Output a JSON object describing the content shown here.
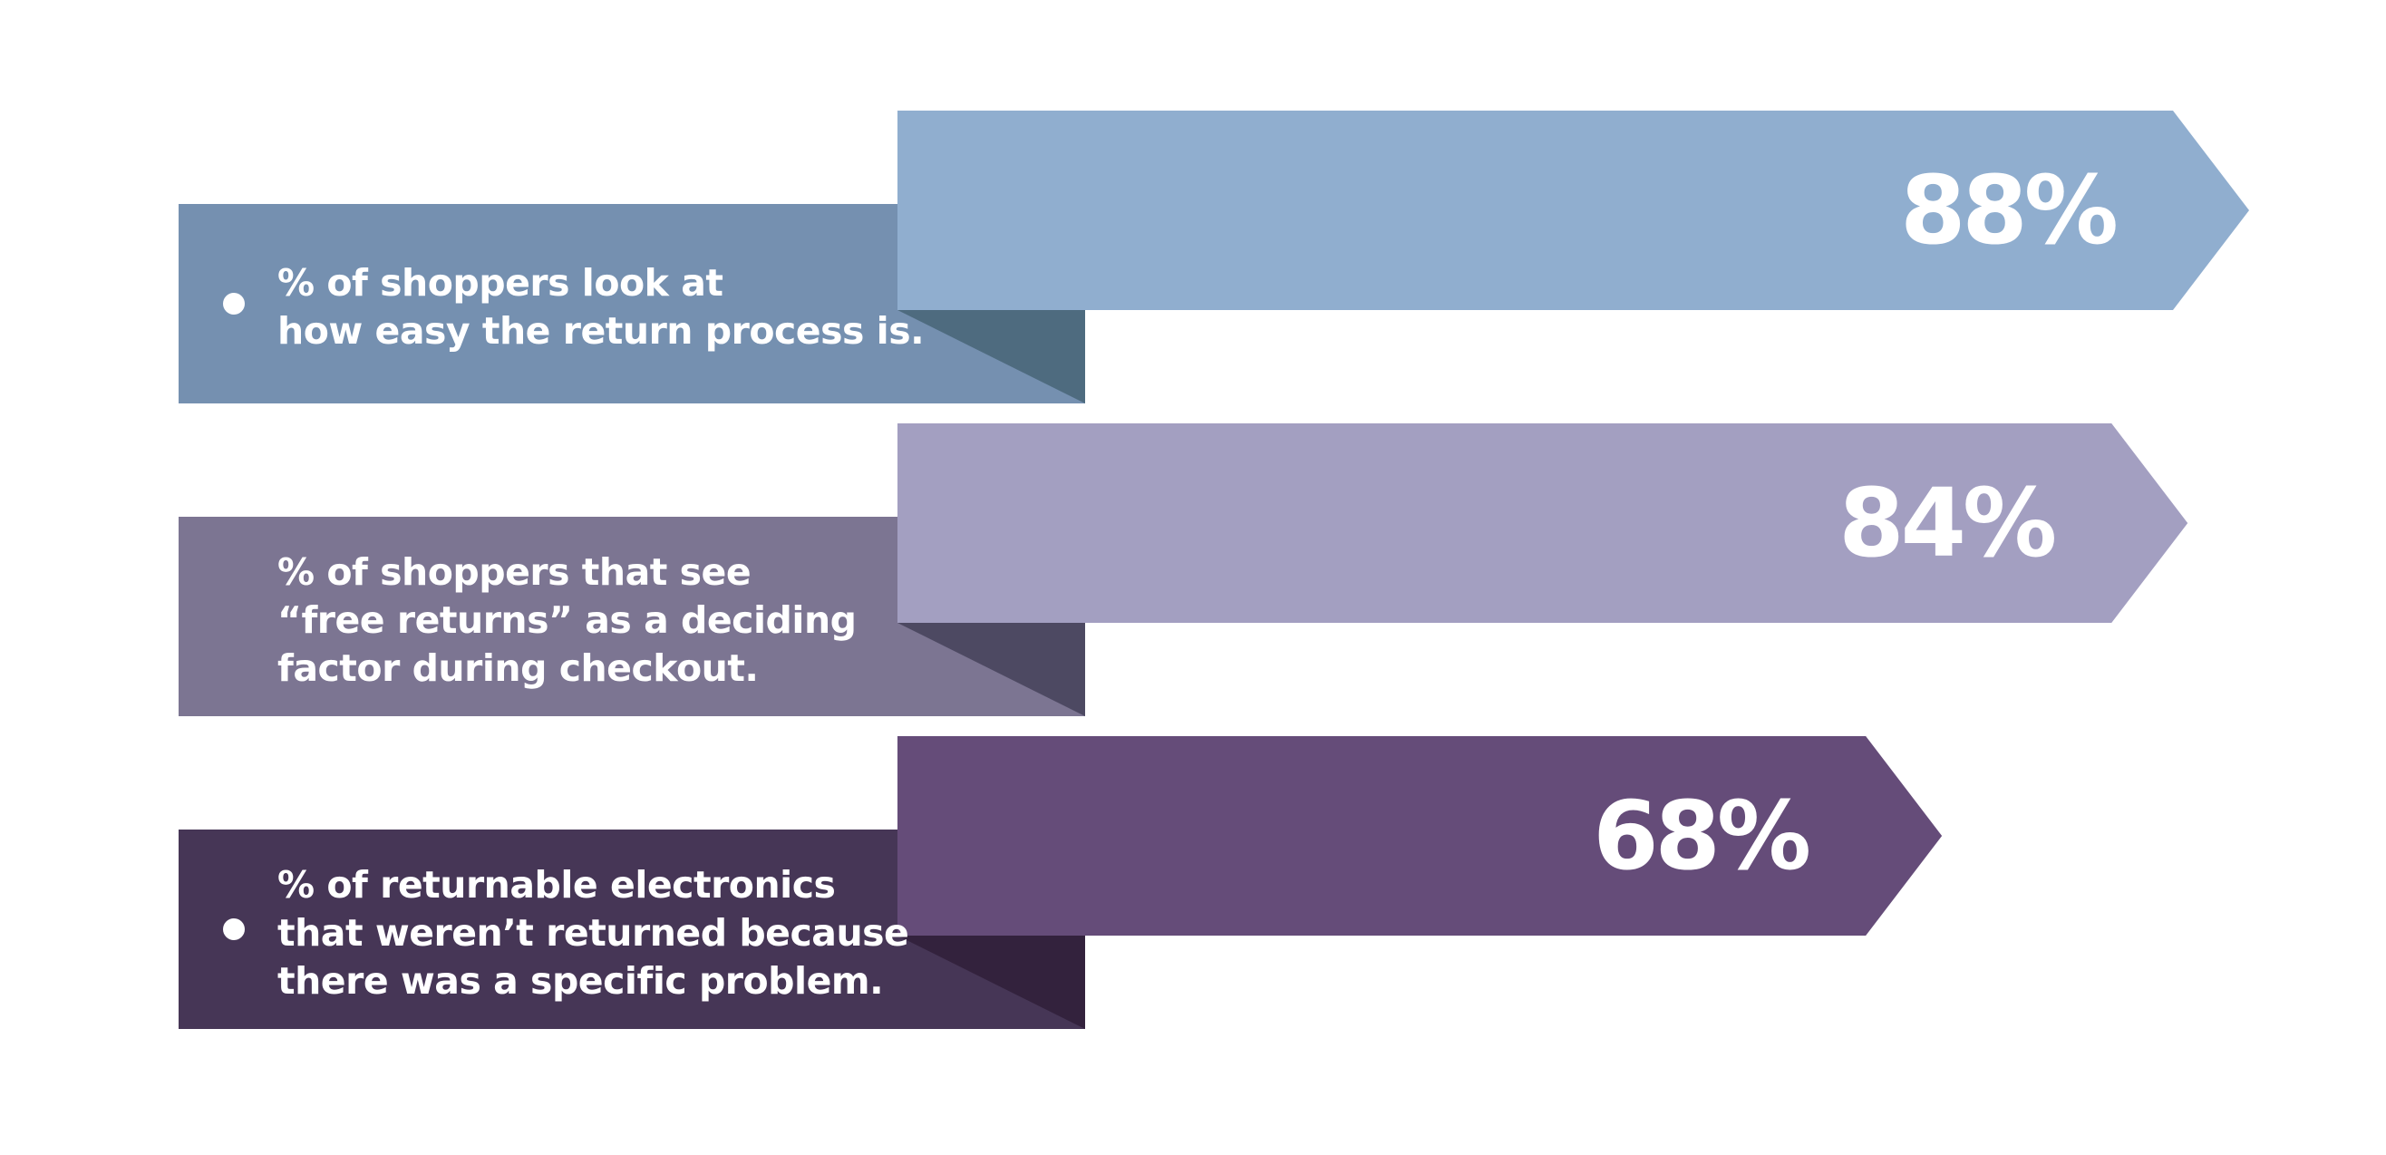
{
  "chart_data": {
    "type": "bar",
    "orientation": "horizontal",
    "title": "",
    "xlabel": "",
    "ylabel": "",
    "xlim": [
      0,
      100
    ],
    "grid": false,
    "legend": "none",
    "categories": [
      "% of shoppers look at how easy the return process is.",
      "% of shoppers that see “free returns” as a deciding factor during checkout.",
      "% of returnable electronics that weren’t returned because there was a specific problem."
    ],
    "values": [
      88,
      84,
      68
    ],
    "value_labels": [
      "88%",
      "84%",
      "68%"
    ],
    "rows": [
      {
        "label_lines": [
          "% of shoppers look at",
          "how easy the return process is."
        ],
        "value": 88,
        "value_label": "88%",
        "bullet": true,
        "colors": {
          "arrow": "#90aecf",
          "panel": "#7590b0",
          "fold": "#4e6b7f"
        }
      },
      {
        "label_lines": [
          "% of shoppers that see",
          "“free returns” as a deciding",
          "factor during checkout."
        ],
        "value": 84,
        "value_label": "84%",
        "bullet": false,
        "colors": {
          "arrow": "#a39fc1",
          "panel": "#7c7592",
          "fold": "#4d4962"
        }
      },
      {
        "label_lines": [
          "% of returnable electronics",
          "that weren’t returned because",
          "there was a specific problem."
        ],
        "value": 68,
        "value_label": "68%",
        "bullet": true,
        "colors": {
          "arrow": "#654c79",
          "panel": "#463656",
          "fold": "#33223d"
        }
      }
    ]
  }
}
